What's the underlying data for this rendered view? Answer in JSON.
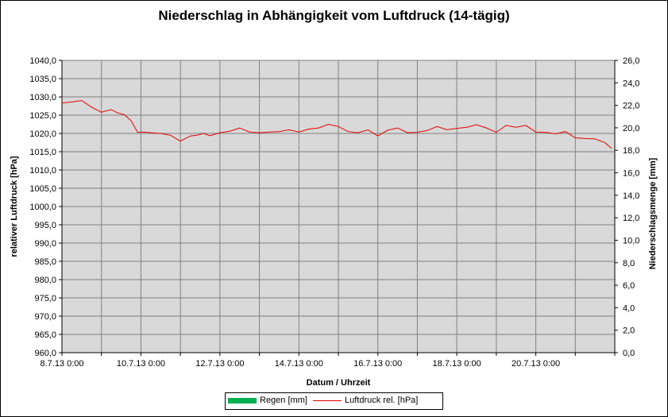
{
  "chart_data": {
    "type": "line",
    "title": "Niederschlag in Abhängigkeit vom Luftdruck (14-tägig)",
    "xlabel": "Datum / Uhrzeit",
    "ylabel": "relativer Luftdruck [hPa]",
    "y2label": "Niederschlagsmenge [mm]",
    "ylim": [
      960,
      1040
    ],
    "y2lim": [
      0,
      26
    ],
    "grid": true,
    "plot_background": "#d9d9d9",
    "legend_position": "bottom",
    "y_ticks": [
      "960,0",
      "965,0",
      "970,0",
      "975,0",
      "980,0",
      "985,0",
      "990,0",
      "995,0",
      "1000,0",
      "1005,0",
      "1010,0",
      "1015,0",
      "1020,0",
      "1025,0",
      "1030,0",
      "1035,0",
      "1040,0"
    ],
    "y2_ticks": [
      "0,0",
      "2,0",
      "4,0",
      "6,0",
      "8,0",
      "10,0",
      "12,0",
      "14,0",
      "16,0",
      "18,0",
      "20,0",
      "22,0",
      "24,0",
      "26,0"
    ],
    "x_ticks": [
      "8.7.13 0:00",
      "10.7.13 0:00",
      "12.7.13 0:00",
      "14.7.13 0:00",
      "16.7.13 0:00",
      "18.7.13 0:00",
      "20.7.13 0:00"
    ],
    "x_range_days": [
      "2013-07-08 00:00",
      "2013-07-22 00:00"
    ],
    "series": [
      {
        "name": "Regen [mm]",
        "type": "bar",
        "axis": "right",
        "color": "#00b050",
        "x": [],
        "values": []
      },
      {
        "name": "Luftdruck rel. [hPa]",
        "type": "line",
        "axis": "left",
        "color": "#e00000",
        "x": [
          "2013-07-08 00:00",
          "2013-07-08 06:00",
          "2013-07-08 12:00",
          "2013-07-08 18:00",
          "2013-07-09 00:00",
          "2013-07-09 03:00",
          "2013-07-09 06:00",
          "2013-07-09 10:00",
          "2013-07-09 14:00",
          "2013-07-09 18:00",
          "2013-07-09 22:00",
          "2013-07-10 02:00",
          "2013-07-10 06:00",
          "2013-07-10 12:00",
          "2013-07-10 18:00",
          "2013-07-11 00:00",
          "2013-07-11 06:00",
          "2013-07-11 10:00",
          "2013-07-11 14:00",
          "2013-07-11 18:00",
          "2013-07-12 00:00",
          "2013-07-12 06:00",
          "2013-07-12 12:00",
          "2013-07-12 18:00",
          "2013-07-13 00:00",
          "2013-07-13 06:00",
          "2013-07-13 12:00",
          "2013-07-13 18:00",
          "2013-07-14 00:00",
          "2013-07-14 06:00",
          "2013-07-14 12:00",
          "2013-07-14 18:00",
          "2013-07-15 00:00",
          "2013-07-15 06:00",
          "2013-07-15 12:00",
          "2013-07-15 18:00",
          "2013-07-16 00:00",
          "2013-07-16 06:00",
          "2013-07-16 12:00",
          "2013-07-16 18:00",
          "2013-07-17 00:00",
          "2013-07-17 06:00",
          "2013-07-17 12:00",
          "2013-07-17 18:00",
          "2013-07-18 00:00",
          "2013-07-18 06:00",
          "2013-07-18 12:00",
          "2013-07-18 18:00",
          "2013-07-19 00:00",
          "2013-07-19 06:00",
          "2013-07-19 12:00",
          "2013-07-19 18:00",
          "2013-07-20 00:00",
          "2013-07-20 06:00",
          "2013-07-20 12:00",
          "2013-07-20 18:00",
          "2013-07-21 00:00",
          "2013-07-21 06:00",
          "2013-07-21 12:00",
          "2013-07-21 18:00",
          "2013-07-21 22:00"
        ],
        "values": [
          1028.3,
          1028.6,
          1029.0,
          1027.2,
          1025.8,
          1026.2,
          1026.5,
          1025.6,
          1025.1,
          1023.5,
          1020.3,
          1020.4,
          1020.2,
          1020.0,
          1019.5,
          1017.9,
          1019.3,
          1019.5,
          1020.0,
          1019.4,
          1020.2,
          1020.6,
          1021.5,
          1020.4,
          1020.2,
          1020.4,
          1020.5,
          1021.0,
          1020.4,
          1021.2,
          1021.5,
          1022.5,
          1021.9,
          1020.5,
          1020.2,
          1021.0,
          1019.3,
          1020.9,
          1021.5,
          1020.2,
          1020.3,
          1020.8,
          1021.9,
          1021.0,
          1021.4,
          1021.7,
          1022.4,
          1021.5,
          1020.3,
          1022.2,
          1021.7,
          1022.2,
          1020.4,
          1020.3,
          1019.9,
          1020.5,
          1018.8,
          1018.6,
          1018.5,
          1017.5,
          1015.9
        ]
      }
    ]
  }
}
